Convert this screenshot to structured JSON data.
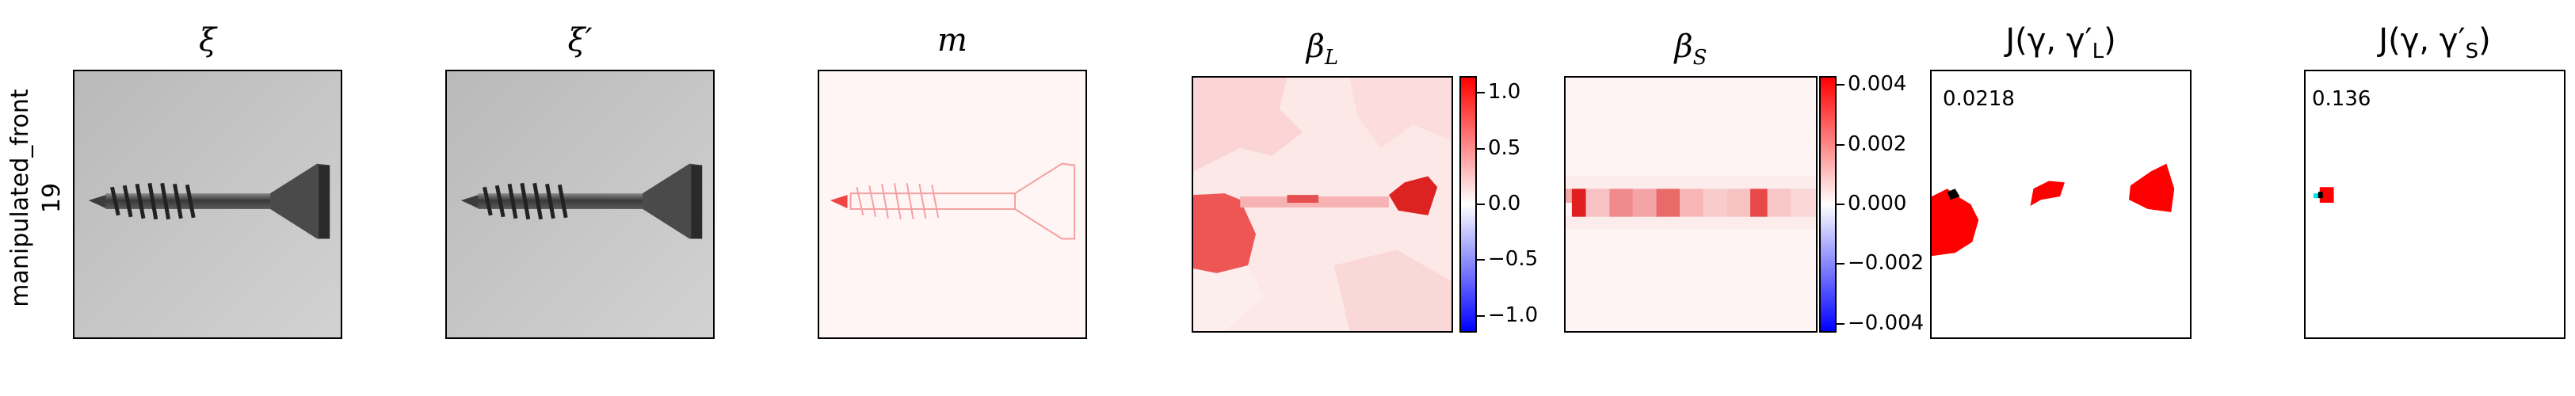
{
  "row_label": {
    "line1": "manipulated_front",
    "line2": "19"
  },
  "panels": {
    "xi": {
      "title": "ξ"
    },
    "xi_prime": {
      "title": "ξ′"
    },
    "m": {
      "title": "m"
    },
    "beta_L": {
      "title": "β",
      "sub": "L",
      "colorbar": {
        "ticks": [
          "1.0",
          "0.5",
          "0.0",
          "−0.5",
          "−1.0"
        ],
        "range": [
          -1.15,
          1.15
        ],
        "values": [
          1.0,
          0.5,
          0.0,
          -0.5,
          -1.0
        ]
      }
    },
    "beta_S": {
      "title": "β",
      "sub": "S",
      "colorbar": {
        "ticks": [
          "0.004",
          "0.002",
          "0.000",
          "−0.002",
          "−0.004"
        ],
        "range": [
          -0.0043,
          0.0043
        ],
        "values": [
          0.004,
          0.002,
          0.0,
          -0.002,
          -0.004
        ]
      }
    },
    "J_L": {
      "title_prefix": "J(γ, γ′",
      "title_sub": "L",
      "title_suffix": ")",
      "score": "0.0218"
    },
    "J_S": {
      "title_prefix": "J(γ, γ′",
      "title_sub": "S",
      "title_suffix": ")",
      "score": "0.136"
    }
  },
  "colors": {
    "positive": "#ff0000",
    "negative": "#0000ff",
    "neutral": "#ffffff",
    "mask_marker_dark": "#000000",
    "mask_marker_cyan": "#00e5ee"
  }
}
